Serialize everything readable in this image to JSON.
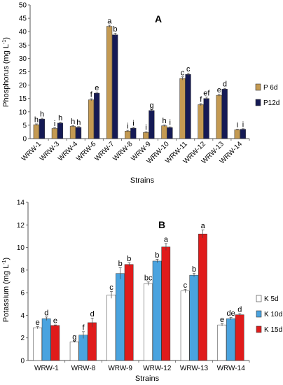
{
  "chart_data": [
    {
      "type": "bar",
      "title": "A",
      "xlabel": "Strains",
      "ylabel": "Phosphorus (mg L⁻¹)",
      "ylabel_main": "Phosphorus (mg L",
      "ylabel_sup": "-1",
      "ylabel_end": ")",
      "ylim": [
        0,
        50
      ],
      "yticks": [
        0,
        5,
        10,
        15,
        20,
        25,
        30,
        35,
        40,
        45,
        50
      ],
      "legend_position": "right",
      "categories": [
        "WRW-1",
        "WRW-3",
        "WRW-4",
        "WRW-6",
        "WRW-7",
        "WRW-8",
        "WRW-9",
        "WRW-10",
        "WRW-11",
        "WRW-12",
        "WRW-13",
        "WRW-14"
      ],
      "series": [
        {
          "name": "P 6d",
          "color": "#c49a52",
          "values": [
            5.2,
            3.8,
            4.6,
            14.5,
            42.0,
            2.8,
            2.3,
            4.8,
            22.5,
            12.7,
            16.2,
            3.3
          ],
          "errors": [
            0.3,
            0.3,
            0.3,
            0.4,
            0.4,
            0.3,
            0.3,
            0.3,
            0.6,
            0.4,
            0.4,
            0.2
          ],
          "labels": [
            "h",
            "i",
            "h",
            "f",
            "a",
            "i",
            "i",
            "h",
            "c",
            "f",
            "e",
            "i"
          ]
        },
        {
          "name": "P12d",
          "color": "#151a55",
          "values": [
            7.3,
            5.8,
            4.2,
            17.0,
            38.8,
            3.9,
            10.5,
            4.1,
            24.0,
            15.0,
            18.5,
            3.5
          ],
          "errors": [
            0.3,
            0.3,
            0.3,
            0.4,
            0.6,
            0.3,
            0.3,
            0.3,
            0.5,
            0.5,
            0.3,
            0.2
          ],
          "labels": [
            "h",
            "h",
            "h",
            "e",
            "b",
            "i",
            "g",
            "i",
            "c",
            "ef",
            "d",
            "i"
          ]
        }
      ]
    },
    {
      "type": "bar",
      "title": "B",
      "xlabel": "Strains",
      "ylabel": "Potassium (mg L⁻¹)",
      "ylabel_main": "Potassium (mg L",
      "ylabel_sup": "-1",
      "ylabel_end": ")",
      "ylim": [
        0,
        14
      ],
      "yticks": [
        0,
        2,
        4,
        6,
        8,
        10,
        12,
        14
      ],
      "legend_position": "right",
      "categories": [
        "WRW-1",
        "WRW-8",
        "WRW-9",
        "WRW-12",
        "WRW-13",
        "WRW-14"
      ],
      "series": [
        {
          "name": "K 5d",
          "color": "#ffffff",
          "values": [
            2.9,
            1.65,
            5.8,
            6.8,
            6.15,
            3.15
          ],
          "errors": [
            0.1,
            0.05,
            0.3,
            0.15,
            0.15,
            0.1
          ],
          "labels": [
            "e",
            "g",
            "c",
            "bc",
            "c",
            "e"
          ]
        },
        {
          "name": "K 10d",
          "color": "#4aa3df",
          "values": [
            3.7,
            2.25,
            7.7,
            8.8,
            7.55,
            3.7
          ],
          "errors": [
            0.15,
            0.3,
            0.5,
            0.15,
            0.15,
            0.1
          ],
          "labels": [
            "d",
            "f",
            "b",
            "b",
            "b",
            "de"
          ]
        },
        {
          "name": "K 15d",
          "color": "#e01b1b",
          "values": [
            3.1,
            3.35,
            8.5,
            10.05,
            11.2,
            4.05
          ],
          "errors": [
            0.05,
            0.4,
            0.15,
            0.3,
            0.35,
            0.1
          ],
          "labels": [
            "e",
            "d",
            "b",
            "a",
            "a",
            "d"
          ]
        }
      ]
    }
  ]
}
